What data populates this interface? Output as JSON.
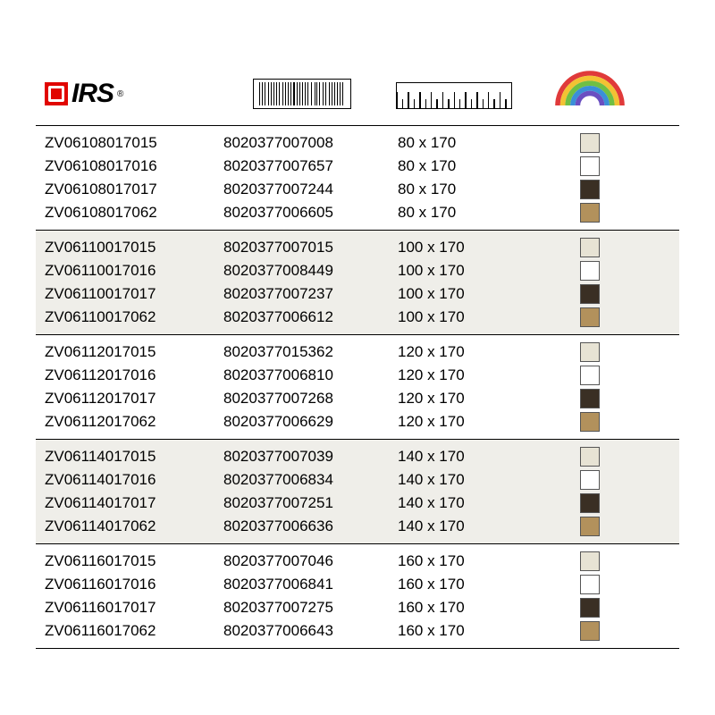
{
  "logo": {
    "text": "IRS",
    "reg": "®"
  },
  "header_icons": {
    "barcode_widths": [
      2,
      1,
      3,
      1,
      1,
      2,
      1,
      3,
      1,
      2,
      1,
      1,
      3,
      1,
      2,
      1,
      1,
      2,
      3,
      1,
      1,
      2,
      1,
      3,
      1,
      2,
      1,
      1,
      2,
      1
    ],
    "ruler_major_count": 10,
    "rainbow_colors": [
      "#e03a3a",
      "#f3c233",
      "#6fbf44",
      "#3a8fd8",
      "#6a4fc1"
    ]
  },
  "color_map": {
    "cream": "#e7e3d4",
    "white": "#ffffff",
    "brown": "#3a2f24",
    "tan": "#b2915c"
  },
  "groups": [
    {
      "shaded": false,
      "rows": [
        {
          "code": "ZV06108017015",
          "ean": "8020377007008",
          "size": "80 x 170",
          "color": "cream"
        },
        {
          "code": "ZV06108017016",
          "ean": "8020377007657",
          "size": "80 x 170",
          "color": "white"
        },
        {
          "code": "ZV06108017017",
          "ean": "8020377007244",
          "size": "80 x 170",
          "color": "brown"
        },
        {
          "code": "ZV06108017062",
          "ean": "8020377006605",
          "size": "80 x 170",
          "color": "tan"
        }
      ]
    },
    {
      "shaded": true,
      "rows": [
        {
          "code": "ZV06110017015",
          "ean": "8020377007015",
          "size": "100 x 170",
          "color": "cream"
        },
        {
          "code": "ZV06110017016",
          "ean": "8020377008449",
          "size": "100 x 170",
          "color": "white"
        },
        {
          "code": "ZV06110017017",
          "ean": "8020377007237",
          "size": "100 x 170",
          "color": "brown"
        },
        {
          "code": "ZV06110017062",
          "ean": "8020377006612",
          "size": "100 x 170",
          "color": "tan"
        }
      ]
    },
    {
      "shaded": false,
      "rows": [
        {
          "code": "ZV06112017015",
          "ean": "8020377015362",
          "size": "120 x 170",
          "color": "cream"
        },
        {
          "code": "ZV06112017016",
          "ean": "8020377006810",
          "size": "120 x 170",
          "color": "white"
        },
        {
          "code": "ZV06112017017",
          "ean": "8020377007268",
          "size": "120 x 170",
          "color": "brown"
        },
        {
          "code": "ZV06112017062",
          "ean": "8020377006629",
          "size": "120 x 170",
          "color": "tan"
        }
      ]
    },
    {
      "shaded": true,
      "rows": [
        {
          "code": "ZV06114017015",
          "ean": "8020377007039",
          "size": "140 x 170",
          "color": "cream"
        },
        {
          "code": "ZV06114017016",
          "ean": "8020377006834",
          "size": "140 x 170",
          "color": "white"
        },
        {
          "code": "ZV06114017017",
          "ean": "8020377007251",
          "size": "140 x 170",
          "color": "brown"
        },
        {
          "code": "ZV06114017062",
          "ean": "8020377006636",
          "size": "140 x 170",
          "color": "tan"
        }
      ]
    },
    {
      "shaded": false,
      "rows": [
        {
          "code": "ZV06116017015",
          "ean": "8020377007046",
          "size": "160 x 170",
          "color": "cream"
        },
        {
          "code": "ZV06116017016",
          "ean": "8020377006841",
          "size": "160 x 170",
          "color": "white"
        },
        {
          "code": "ZV06116017017",
          "ean": "8020377007275",
          "size": "160 x 170",
          "color": "brown"
        },
        {
          "code": "ZV06116017062",
          "ean": "8020377006643",
          "size": "160 x 170",
          "color": "tan"
        }
      ]
    }
  ]
}
